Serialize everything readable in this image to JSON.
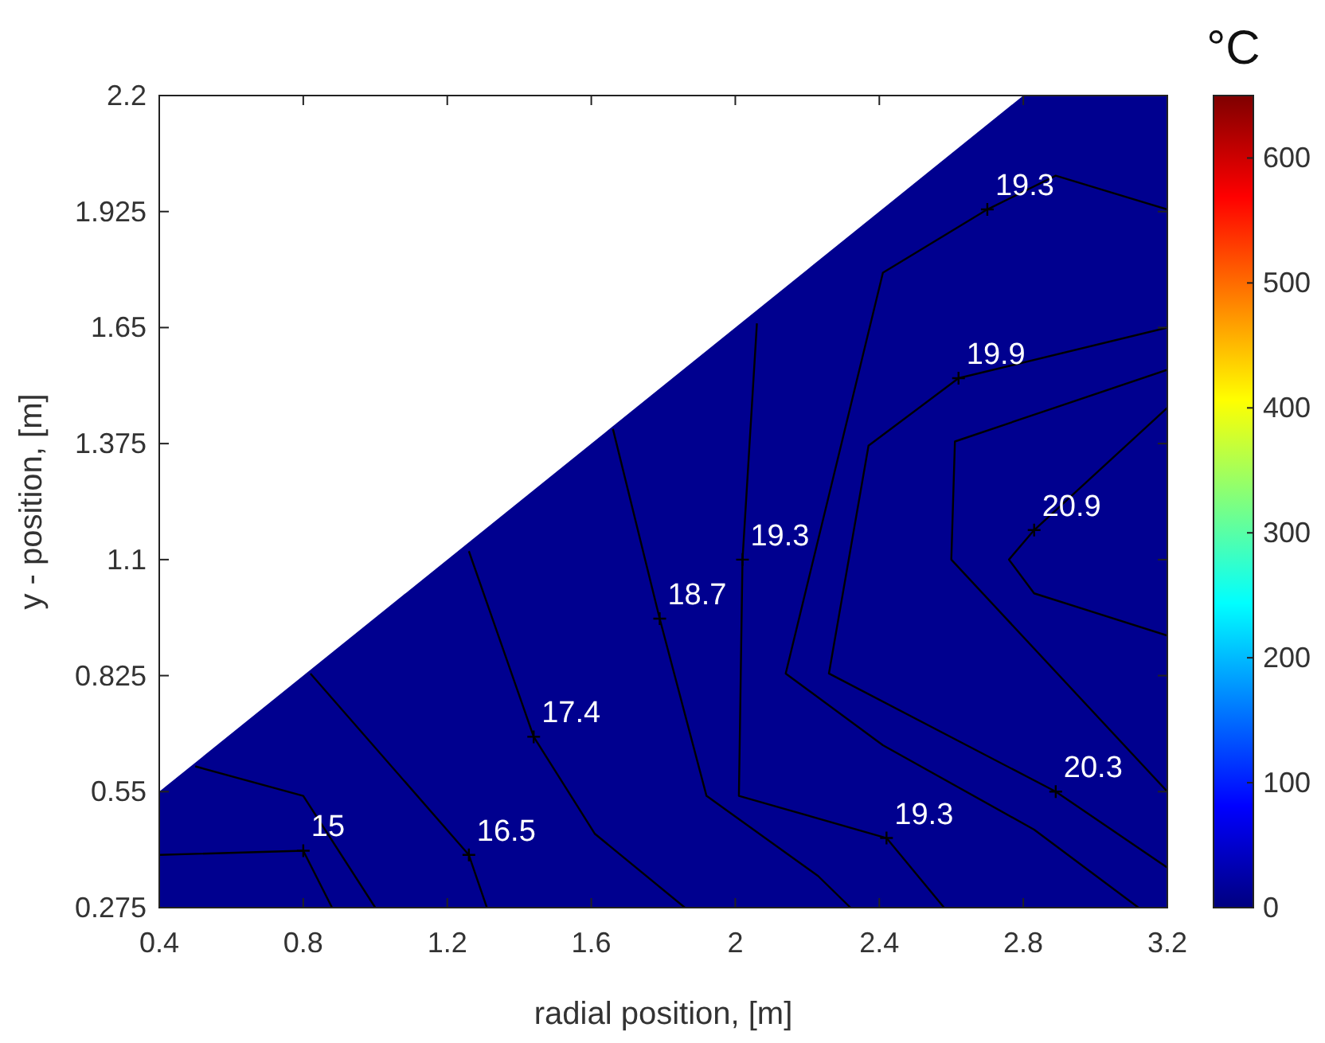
{
  "chart_data": {
    "type": "line",
    "xlabel": "radial position, [m]",
    "ylabel": "y - position, [m]",
    "clabel": "°C",
    "xlim": [
      0.4,
      3.2
    ],
    "xticks": [
      0.4,
      0.8,
      1.2,
      1.6,
      2,
      2.4,
      2.8,
      3.2
    ],
    "ylim": [
      0.275,
      2.2
    ],
    "yticks": [
      0.275,
      0.55,
      0.825,
      1.1,
      1.375,
      1.65,
      1.925,
      2.2
    ],
    "clim": [
      0,
      650
    ],
    "cticks": [
      0,
      100,
      200,
      300,
      400,
      500,
      600
    ],
    "series": [
      {
        "type": "area",
        "color": "#00008f",
        "x": [
          0.4,
          2.8,
          3.2
        ],
        "values": [
          0.55,
          2.2,
          2.2
        ]
      },
      {
        "color": "#000000",
        "x": [
          0.4,
          0.8,
          0.88
        ],
        "values": [
          0.4,
          0.41,
          0.275
        ]
      },
      {
        "color": "#000000",
        "x": [
          0.5,
          0.8,
          1.0
        ],
        "values": [
          0.61,
          0.54,
          0.275
        ]
      },
      {
        "color": "#000000",
        "x": [
          0.82,
          1.26,
          1.31
        ],
        "values": [
          0.83,
          0.4,
          0.275
        ]
      },
      {
        "color": "#000000",
        "x": [
          1.26,
          1.44,
          1.61,
          1.86
        ],
        "values": [
          1.12,
          0.68,
          0.45,
          0.275
        ]
      },
      {
        "color": "#000000",
        "x": [
          1.66,
          1.79,
          1.92,
          2.23,
          2.32
        ],
        "values": [
          1.41,
          0.96,
          0.54,
          0.35,
          0.275
        ]
      },
      {
        "color": "#000000",
        "x": [
          2.06,
          2.02,
          2.01,
          2.42,
          2.58
        ],
        "values": [
          1.66,
          1.1,
          0.54,
          0.44,
          0.275
        ]
      },
      {
        "color": "#000000",
        "x": [
          3.2,
          2.89,
          2.7,
          2.41,
          2.14,
          2.41,
          2.83,
          3.12
        ],
        "values": [
          1.93,
          2.01,
          1.93,
          1.78,
          0.83,
          0.66,
          0.46,
          0.275
        ]
      },
      {
        "color": "#000000",
        "x": [
          3.2,
          2.62,
          2.37,
          2.26,
          2.89,
          3.2
        ],
        "values": [
          1.65,
          1.53,
          1.37,
          0.83,
          0.55,
          0.37
        ]
      },
      {
        "color": "#000000",
        "x": [
          3.2,
          2.61,
          2.6,
          3.2
        ],
        "values": [
          1.55,
          1.38,
          1.1,
          0.55
        ]
      },
      {
        "color": "#000000",
        "x": [
          3.2,
          2.83,
          2.76,
          2.83,
          3.2
        ],
        "values": [
          1.46,
          1.17,
          1.1,
          1.02,
          0.92
        ]
      }
    ],
    "annotations": [
      {
        "text": "15",
        "x": 0.8,
        "y": 0.41
      },
      {
        "text": "16.5",
        "x": 1.26,
        "y": 0.4
      },
      {
        "text": "17.4",
        "x": 1.44,
        "y": 0.68
      },
      {
        "text": "18.7",
        "x": 1.79,
        "y": 0.96
      },
      {
        "text": "19.3",
        "x": 2.02,
        "y": 1.1
      },
      {
        "text": "19.3",
        "x": 2.7,
        "y": 1.93
      },
      {
        "text": "19.9",
        "x": 2.62,
        "y": 1.53
      },
      {
        "text": "20.9",
        "x": 2.83,
        "y": 1.17
      },
      {
        "text": "20.3",
        "x": 2.89,
        "y": 0.55
      },
      {
        "text": "19.3",
        "x": 2.42,
        "y": 0.44
      }
    ]
  }
}
